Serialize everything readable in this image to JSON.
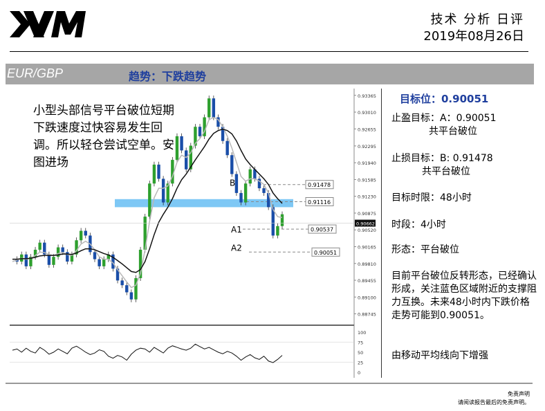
{
  "header": {
    "logo_text": "XM",
    "title": "技术 分析 日评",
    "date": "2019年08月26日"
  },
  "banner": {
    "pair": "EUR/GBP",
    "trend": "趋势：下跌趋势"
  },
  "overlay_text": "小型头部信号平台破位短期下跌速度过快容易发生回调。所以轻仓尝试空单。安图进场",
  "sidebar": {
    "target_line": "目标位：0.90051",
    "tp_line1": "止盈目标：A：0.90051",
    "tp_line2": "共平台破位",
    "sl_line1": "止损目标：B: 0.91478",
    "sl_line2": "共平台破位",
    "time_limit": "目标时限：48小时",
    "timeframe": "时段：4小时",
    "pattern": "形态：平台破位",
    "analysis": "目前平台破位反转形态，已经确认形成，关注蓝色区域附近的支撑阻力互换。未来48小时内下跌价格走势可能到0.90051。",
    "ma_note": "由移动平均线向下增强"
  },
  "chart_data": {
    "type": "candlestick",
    "instrument": "EUR/GBP",
    "timeframe": "4小时",
    "price_axis_ticks": [
      "0.93365",
      "0.93010",
      "0.92655",
      "0.92295",
      "0.91940",
      "0.91585",
      "0.91230",
      "0.90875",
      "0.90520",
      "0.90165",
      "0.89810",
      "0.89455",
      "0.89100",
      "0.88745"
    ],
    "current_price": "0.90662",
    "ylim": [
      0.8868,
      0.9342
    ],
    "levels": [
      {
        "label": "B",
        "price_label": "0.91478",
        "value": 0.91478
      },
      {
        "label": "",
        "price_label": "0.91116",
        "value": 0.91116
      },
      {
        "label": "A1",
        "price_label": "0.90537",
        "value": 0.90537
      },
      {
        "label": "A2",
        "price_label": "0.90051",
        "value": 0.90051
      }
    ],
    "support_zone": {
      "from": 0.91,
      "to": 0.9117,
      "color": "#7ec8f5"
    },
    "price_path": [
      0.899,
      0.8985,
      0.9,
      0.8975,
      0.8995,
      0.901,
      0.9025,
      0.9,
      0.8978,
      0.8995,
      0.9015,
      0.9005,
      0.8985,
      0.9,
      0.903,
      0.905,
      0.904,
      0.9005,
      0.899,
      0.8975,
      0.899,
      0.9,
      0.897,
      0.8945,
      0.8935,
      0.892,
      0.8905,
      0.895,
      0.901,
      0.908,
      0.915,
      0.919,
      0.916,
      0.911,
      0.915,
      0.92,
      0.925,
      0.922,
      0.918,
      0.923,
      0.927,
      0.925,
      0.929,
      0.933,
      0.929,
      0.927,
      0.924,
      0.921,
      0.917,
      0.913,
      0.911,
      0.915,
      0.918,
      0.916,
      0.914,
      0.913,
      0.91,
      0.904,
      0.906,
      0.9085
    ],
    "ma_fast": [
      0.8985,
      0.8988,
      0.8992,
      0.899,
      0.8992,
      0.8998,
      0.9005,
      0.9004,
      0.9,
      0.8998,
      0.9002,
      0.9004,
      0.9,
      0.8998,
      0.9008,
      0.9022,
      0.9028,
      0.9022,
      0.901,
      0.8995,
      0.899,
      0.899,
      0.8982,
      0.8968,
      0.8955,
      0.8942,
      0.893,
      0.8935,
      0.896,
      0.901,
      0.907,
      0.912,
      0.914,
      0.914,
      0.9145,
      0.9165,
      0.9195,
      0.921,
      0.9205,
      0.9215,
      0.9235,
      0.9245,
      0.926,
      0.9285,
      0.929,
      0.9285,
      0.927,
      0.925,
      0.9225,
      0.9195,
      0.9165,
      0.9155,
      0.916,
      0.916,
      0.9155,
      0.9148,
      0.913,
      0.9095,
      0.908,
      0.9078
    ],
    "ma_slow": [
      0.899,
      0.899,
      0.8991,
      0.8991,
      0.8992,
      0.8994,
      0.8997,
      0.8998,
      0.8998,
      0.8998,
      0.8999,
      0.9001,
      0.9001,
      0.9,
      0.9003,
      0.9008,
      0.9012,
      0.9012,
      0.901,
      0.9006,
      0.9002,
      0.8999,
      0.8994,
      0.8987,
      0.898,
      0.8972,
      0.8964,
      0.8962,
      0.8968,
      0.8985,
      0.9012,
      0.9042,
      0.9068,
      0.9085,
      0.91,
      0.9118,
      0.914,
      0.9158,
      0.917,
      0.9185,
      0.92,
      0.9214,
      0.9228,
      0.9244,
      0.9256,
      0.9262,
      0.9265,
      0.9262,
      0.9255,
      0.924,
      0.922,
      0.9202,
      0.919,
      0.918,
      0.917,
      0.916,
      0.9148,
      0.913,
      0.9118,
      0.9108
    ],
    "oscillator": {
      "ticks": [
        "100",
        "75",
        "50",
        "25",
        "0"
      ],
      "ylim": [
        0,
        100
      ],
      "levels": [
        75,
        25
      ],
      "values": [
        55,
        58,
        50,
        60,
        52,
        48,
        62,
        55,
        45,
        50,
        58,
        52,
        46,
        60,
        65,
        58,
        50,
        44,
        48,
        56,
        52,
        40,
        35,
        42,
        38,
        30,
        45,
        55,
        60,
        58,
        50,
        62,
        55,
        48,
        60,
        66,
        62,
        58,
        55,
        60,
        70,
        64,
        58,
        62,
        56,
        50,
        46,
        52,
        48,
        40,
        30,
        38,
        44,
        36,
        32,
        40,
        28,
        24,
        32,
        42
      ]
    }
  },
  "footer": {
    "disclaimer_title": "免责声明",
    "disclaimer_text": "请阅读报告最后的免责声明。"
  },
  "colors": {
    "brand_black": "#000000",
    "banner_gray": "#a6a6a6",
    "accent_blue": "#1f3f9e",
    "zone_blue": "#7ec8f5",
    "candle_up": "#2ea02e",
    "candle_down": "#1a4ea8"
  }
}
